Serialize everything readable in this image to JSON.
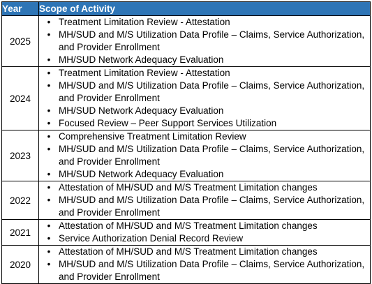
{
  "table": {
    "headers": {
      "year": "Year",
      "scope": "Scope of Activity"
    },
    "bullet_glyph": "•",
    "rows": [
      {
        "year": "2025",
        "items": [
          "Treatment Limitation Review - Attestation",
          "MH/SUD and M/S Utilization Data Profile – Claims, Service Authorization, and Provider Enrollment",
          "MH/SUD Network Adequacy Evaluation"
        ]
      },
      {
        "year": "2024",
        "items": [
          "Treatment Limitation Review - Attestation",
          "MH/SUD and M/S Utilization Data Profile – Claims, Service Authorization, and Provider Enrollment",
          "MH/SUD Network Adequacy Evaluation",
          "Focused Review – Peer Support Services Utilization"
        ]
      },
      {
        "year": "2023",
        "items": [
          "Comprehensive Treatment Limitation Review",
          "MH/SUD and M/S Utilization Data Profile – Claims, Service Authorization, and Provider Enrollment",
          "MH/SUD Network Adequacy Evaluation"
        ]
      },
      {
        "year": "2022",
        "items": [
          "Attestation of MH/SUD and M/S Treatment Limitation changes",
          "MH/SUD and M/S Utilization Data Profile – Claims, Service Authorization, and Provider Enrollment"
        ]
      },
      {
        "year": "2021",
        "items": [
          "Attestation of MH/SUD and M/S Treatment Limitation changes",
          "Service Authorization Denial Record Review"
        ]
      },
      {
        "year": "2020",
        "items": [
          "Attestation of MH/SUD and M/S Treatment Limitation changes",
          "MH/SUD and M/S Utilization Data Profile – Claims, Service Authorization, and Provider Enrollment"
        ]
      }
    ]
  }
}
